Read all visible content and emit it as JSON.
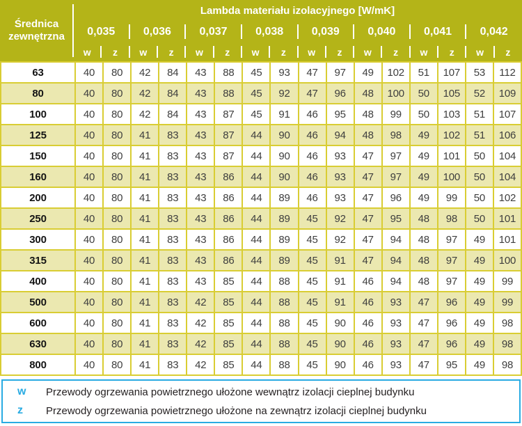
{
  "table": {
    "corner_header": "Średnica zewnętrzna",
    "lambda_header": "Lambda materiału izolacyjnego [W/mK]",
    "lambda_values": [
      "0,035",
      "0,036",
      "0,037",
      "0,038",
      "0,039",
      "0,040",
      "0,041",
      "0,042"
    ],
    "sub_headers": [
      "w",
      "z"
    ],
    "rows": [
      {
        "diameter": "63",
        "values": [
          40,
          80,
          42,
          84,
          43,
          88,
          45,
          93,
          47,
          97,
          49,
          102,
          51,
          107,
          53,
          112
        ]
      },
      {
        "diameter": "80",
        "values": [
          40,
          80,
          42,
          84,
          43,
          88,
          45,
          92,
          47,
          96,
          48,
          100,
          50,
          105,
          52,
          109
        ]
      },
      {
        "diameter": "100",
        "values": [
          40,
          80,
          42,
          84,
          43,
          87,
          45,
          91,
          46,
          95,
          48,
          99,
          50,
          103,
          51,
          107
        ]
      },
      {
        "diameter": "125",
        "values": [
          40,
          80,
          41,
          83,
          43,
          87,
          44,
          90,
          46,
          94,
          48,
          98,
          49,
          102,
          51,
          106
        ]
      },
      {
        "diameter": "150",
        "values": [
          40,
          80,
          41,
          83,
          43,
          87,
          44,
          90,
          46,
          93,
          47,
          97,
          49,
          101,
          50,
          104
        ]
      },
      {
        "diameter": "160",
        "values": [
          40,
          80,
          41,
          83,
          43,
          86,
          44,
          90,
          46,
          93,
          47,
          97,
          49,
          100,
          50,
          104
        ]
      },
      {
        "diameter": "200",
        "values": [
          40,
          80,
          41,
          83,
          43,
          86,
          44,
          89,
          46,
          93,
          47,
          96,
          49,
          99,
          50,
          102
        ]
      },
      {
        "diameter": "250",
        "values": [
          40,
          80,
          41,
          83,
          43,
          86,
          44,
          89,
          45,
          92,
          47,
          95,
          48,
          98,
          50,
          101
        ]
      },
      {
        "diameter": "300",
        "values": [
          40,
          80,
          41,
          83,
          43,
          86,
          44,
          89,
          45,
          92,
          47,
          94,
          48,
          97,
          49,
          101
        ]
      },
      {
        "diameter": "315",
        "values": [
          40,
          80,
          41,
          83,
          43,
          86,
          44,
          89,
          45,
          91,
          47,
          94,
          48,
          97,
          49,
          100
        ]
      },
      {
        "diameter": "400",
        "values": [
          40,
          80,
          41,
          83,
          43,
          85,
          44,
          88,
          45,
          91,
          46,
          94,
          48,
          97,
          49,
          99
        ]
      },
      {
        "diameter": "500",
        "values": [
          40,
          80,
          41,
          83,
          42,
          85,
          44,
          88,
          45,
          91,
          46,
          93,
          47,
          96,
          49,
          99
        ]
      },
      {
        "diameter": "600",
        "values": [
          40,
          80,
          41,
          83,
          42,
          85,
          44,
          88,
          45,
          90,
          46,
          93,
          47,
          96,
          49,
          98
        ]
      },
      {
        "diameter": "630",
        "values": [
          40,
          80,
          41,
          83,
          42,
          85,
          44,
          88,
          45,
          90,
          46,
          93,
          47,
          96,
          49,
          98
        ]
      },
      {
        "diameter": "800",
        "values": [
          40,
          80,
          41,
          83,
          42,
          85,
          44,
          88,
          45,
          90,
          46,
          93,
          47,
          95,
          49,
          98
        ]
      }
    ]
  },
  "legend": {
    "entries": [
      {
        "key": "w",
        "text": "Przewody ogrzewania powietrznego ułożone wewnątrz izolacji cieplnej budynku"
      },
      {
        "key": "z",
        "text": "Przewody ogrzewania powietrznego ułożone na zewnątrz izolacji cieplnej budynku"
      }
    ]
  },
  "colors": {
    "header_olive": "#b4b418",
    "row_alt": "#ebe8b0",
    "cell_border_yellow": "#d9cd33",
    "legend_accent_cyan": "#29abe2",
    "data_text": "#3e3e3e"
  }
}
